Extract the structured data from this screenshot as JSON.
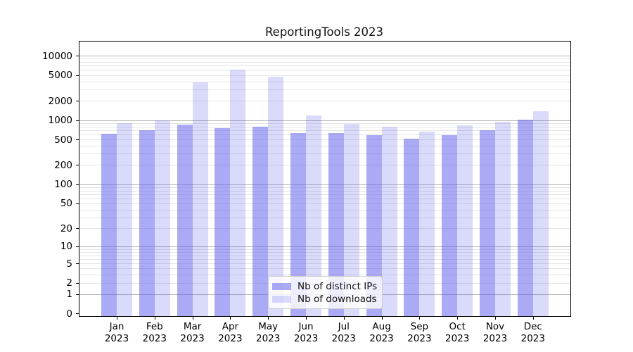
{
  "title": "ReportingTools 2023",
  "chart_data": {
    "type": "bar",
    "title": "ReportingTools 2023",
    "categories": [
      "Jan 2023",
      "Feb 2023",
      "Mar 2023",
      "Apr 2023",
      "May 2023",
      "Jun 2023",
      "Jul 2023",
      "Aug 2023",
      "Sep 2023",
      "Oct 2023",
      "Nov 2023",
      "Dec 2023"
    ],
    "series": [
      {
        "name": "Nb of distinct IPs",
        "color": "rgba(85,85,235,0.5)",
        "values": [
          620,
          700,
          855,
          765,
          800,
          645,
          645,
          595,
          515,
          585,
          700,
          1040
        ]
      },
      {
        "name": "Nb of downloads",
        "color": "rgba(85,85,235,0.22)",
        "values": [
          900,
          1010,
          3870,
          6100,
          4830,
          1195,
          875,
          805,
          675,
          840,
          945,
          1390
        ]
      }
    ],
    "xlabel": "",
    "ylabel": "",
    "y_scale": "log10(1+v) symlog-like",
    "y_ticks": [
      0,
      1,
      2,
      5,
      10,
      20,
      50,
      100,
      200,
      500,
      1000,
      2000,
      5000,
      10000
    ],
    "ylim": [
      0,
      15800
    ],
    "grid": "horizontal major (decades) + minor log gridlines",
    "legend_position": "lower center inside plot"
  },
  "colors": {
    "bar_dark": "rgba(85,85,235,0.5)",
    "bar_light": "rgba(85,85,235,0.22)",
    "major_grid": "#b3b3b3",
    "minor_grid": "#e4e4e4",
    "axis": "#000000",
    "legend_border": "#cccccc"
  }
}
